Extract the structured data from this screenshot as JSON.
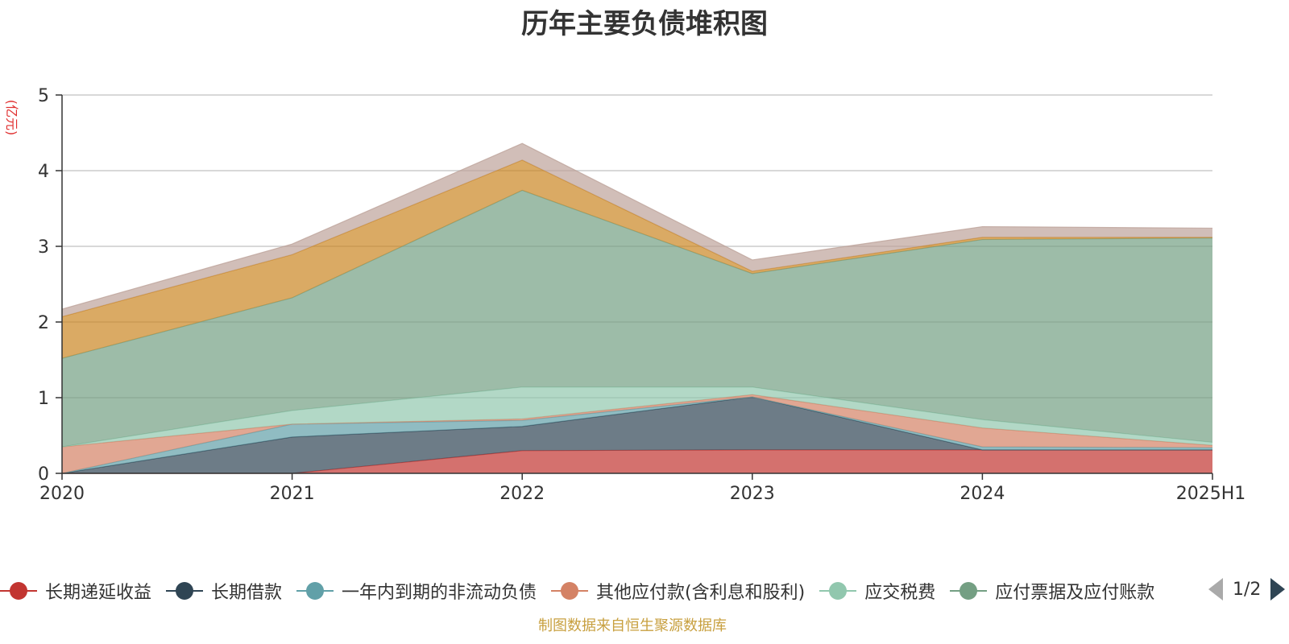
{
  "title": "历年主要负债堆积图",
  "unit_label": "(亿元)",
  "source_note": "制图数据来自恒生聚源数据库",
  "legend_page": "1/2",
  "chart_data": {
    "type": "area",
    "stacked": true,
    "categories": [
      "2020",
      "2021",
      "2022",
      "2023",
      "2024",
      "2025H1"
    ],
    "ylim": [
      0,
      5
    ],
    "yticks": [
      "0",
      "1",
      "2",
      "3",
      "4",
      "5"
    ],
    "grid": true,
    "legend_position": "bottom",
    "series": [
      {
        "name": "长期递延收益",
        "color": "#c23531",
        "values": [
          0,
          0,
          0.3,
          0.31,
          0.31,
          0.31
        ]
      },
      {
        "name": "长期借款",
        "color": "#2f4554",
        "values": [
          0,
          0.48,
          0.32,
          0.7,
          0,
          0
        ]
      },
      {
        "name": "一年内到期的非流动负债",
        "color": "#61a0a8",
        "values": [
          0,
          0.17,
          0.08,
          0,
          0.04,
          0.03
        ]
      },
      {
        "name": "其他应付款(含利息和股利)",
        "color": "#d48265",
        "values": [
          0.35,
          0,
          0.02,
          0.03,
          0.25,
          0.03
        ]
      },
      {
        "name": "应交税费",
        "color": "#91c7ae",
        "values": [
          0,
          0.18,
          0.42,
          0.1,
          0.11,
          0.04
        ]
      },
      {
        "name": "应付票据及应付账款",
        "color": "#749f83",
        "values": [
          1.17,
          1.49,
          2.6,
          1.5,
          2.38,
          2.7
        ]
      },
      {
        "name": "",
        "color": "#ca8622",
        "values": [
          0.55,
          0.57,
          0.4,
          0.03,
          0.03,
          0.01
        ]
      },
      {
        "name": "",
        "color": "#bda29a",
        "values": [
          0.1,
          0.14,
          0.22,
          0.15,
          0.14,
          0.12
        ]
      }
    ]
  }
}
